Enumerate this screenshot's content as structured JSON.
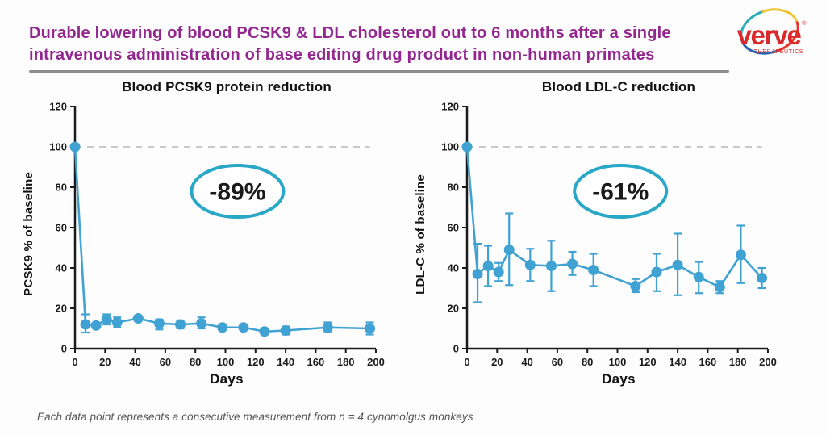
{
  "header": {
    "title_line1": "Durable lowering of blood PCSK9 & LDL cholesterol out to 6 months after a single",
    "title_line2": "intravenous administration of base editing drug product in non-human primates"
  },
  "logo": {
    "wordmark": "verve",
    "subtext": "THERAPEUTICS",
    "trademark": "®"
  },
  "footer": {
    "note": "Each data point represents a consecutive measurement from n = 4 cynomolgus monkeys"
  },
  "colors": {
    "title": "#93278F",
    "series": "#3FA2D2",
    "annotation_stroke": "#29A7C7",
    "annotation_text": "#111111",
    "baseline_dash": "#C9C9C9",
    "axis": "#1A1A1A",
    "logo_red": "#D9292B",
    "footer_text": "#555555"
  },
  "chart_data": [
    {
      "type": "line",
      "title": "Blood PCSK9 protein reduction",
      "xlabel": "Days",
      "ylabel": "PCSK9 % of baseline",
      "xlim": [
        0,
        200
      ],
      "ylim": [
        0,
        120
      ],
      "xticks": [
        0,
        20,
        40,
        60,
        80,
        100,
        120,
        140,
        160,
        180,
        200
      ],
      "yticks": [
        0,
        20,
        40,
        60,
        80,
        100,
        120
      ],
      "grid": false,
      "legend": "none",
      "baseline": 100,
      "annotation": {
        "label": "-89%",
        "x": 108,
        "y": 78
      },
      "series": [
        {
          "name": "PCSK9 % of baseline",
          "x": [
            0,
            7,
            14,
            21,
            28,
            42,
            56,
            70,
            84,
            98,
            112,
            126,
            140,
            168,
            196
          ],
          "y": [
            100,
            12,
            11.5,
            14.5,
            13,
            15,
            12.5,
            12,
            12.5,
            10.5,
            10.5,
            8.5,
            9,
            10.5,
            10
          ],
          "err_low": [
            100,
            8,
            11,
            12,
            10.5,
            14,
            9.5,
            10,
            10,
            9.5,
            9.5,
            7.5,
            7,
            8.5,
            7
          ],
          "err_high": [
            100,
            17,
            12.5,
            17,
            15.5,
            16,
            14.5,
            14,
            15.5,
            11.5,
            11.5,
            9.5,
            11,
            13,
            13
          ]
        }
      ]
    },
    {
      "type": "line",
      "title": "Blood LDL-C reduction",
      "xlabel": "Days",
      "ylabel": "LDL-C % of baseline",
      "xlim": [
        0,
        200
      ],
      "ylim": [
        0,
        120
      ],
      "xticks": [
        0,
        20,
        40,
        60,
        80,
        100,
        120,
        140,
        160,
        180,
        200
      ],
      "yticks": [
        0,
        20,
        40,
        60,
        80,
        100,
        120
      ],
      "grid": false,
      "legend": "none",
      "baseline": 100,
      "annotation": {
        "label": "-61%",
        "x": 102,
        "y": 78
      },
      "series": [
        {
          "name": "LDL-C % of baseline",
          "x": [
            0,
            7,
            14,
            21,
            28,
            42,
            56,
            70,
            84,
            112,
            126,
            140,
            154,
            168,
            182,
            196
          ],
          "y": [
            100,
            37,
            41,
            38,
            49,
            41.5,
            41,
            42,
            39,
            31,
            38,
            41.5,
            35.5,
            30.5,
            46.5,
            35
          ],
          "err_low": [
            100,
            23,
            31,
            33.5,
            31.5,
            33.5,
            28.5,
            36.5,
            31,
            28,
            28.5,
            26.5,
            27.5,
            27.5,
            32.5,
            30
          ],
          "err_high": [
            100,
            52,
            51,
            42.5,
            67,
            49.5,
            53.5,
            48,
            47,
            34.5,
            47,
            57,
            43,
            33.5,
            61,
            40
          ]
        }
      ]
    }
  ]
}
